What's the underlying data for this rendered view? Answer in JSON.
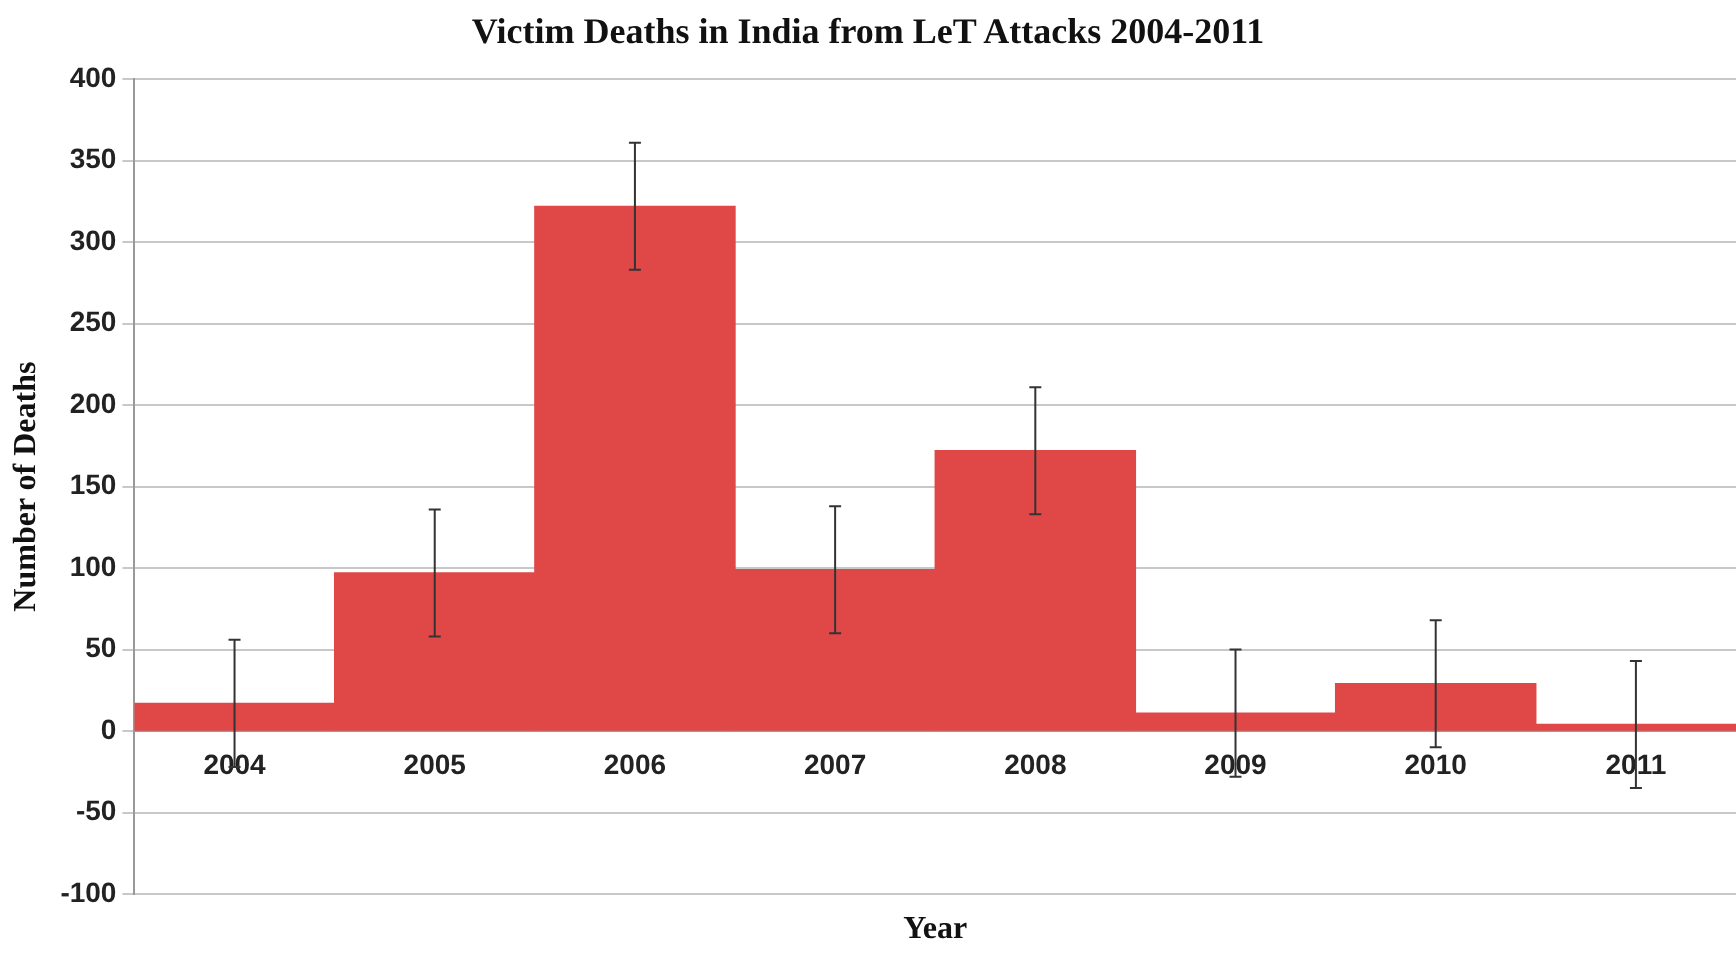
{
  "chart_data": {
    "type": "bar",
    "title": "Victim Deaths in India from LeT Attacks 2004-2011",
    "xlabel": "Year",
    "ylabel": "Number of Deaths",
    "categories": [
      "2004",
      "2005",
      "2006",
      "2007",
      "2008",
      "2009",
      "2010",
      "2011"
    ],
    "values": [
      17,
      97,
      322,
      99,
      172,
      11,
      29,
      4
    ],
    "errors": [
      39,
      39,
      39,
      39,
      39,
      39,
      39,
      39
    ],
    "color": "#e04848",
    "ylim": [
      -100,
      400
    ],
    "yticks": [
      -100,
      -50,
      0,
      50,
      100,
      150,
      200,
      250,
      300,
      350,
      400
    ],
    "grid": "y",
    "legend": false
  }
}
